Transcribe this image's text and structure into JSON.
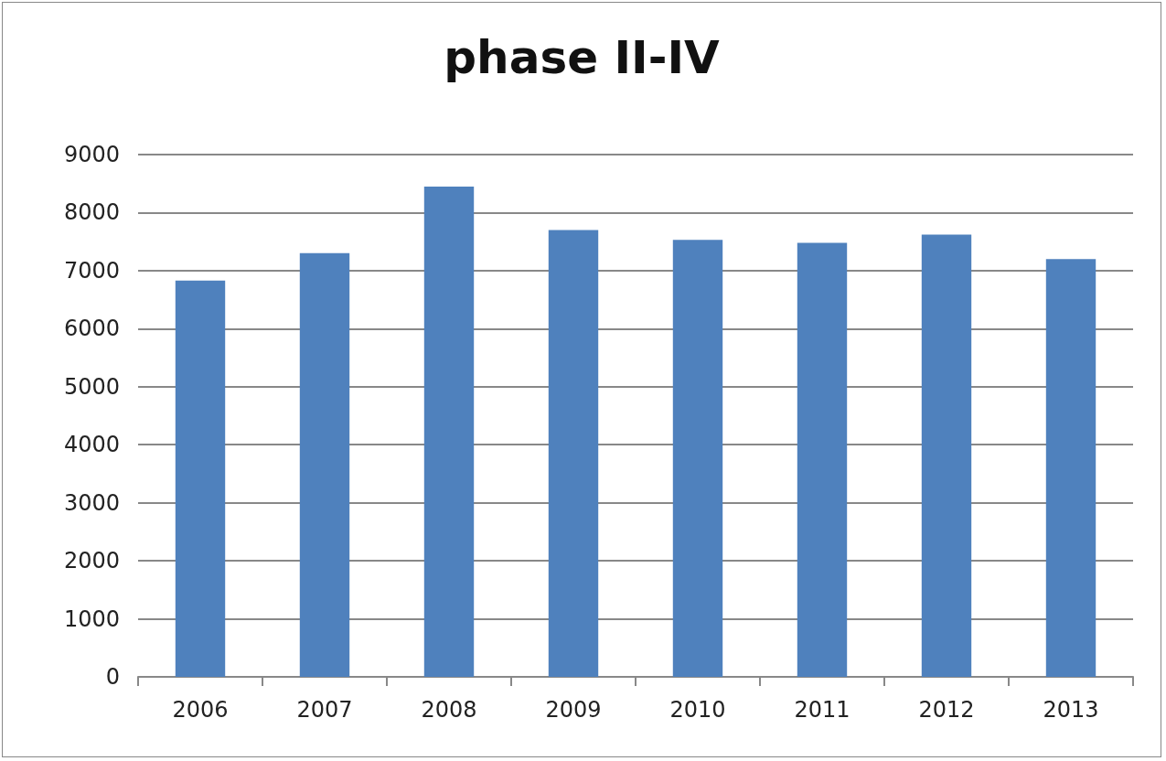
{
  "chart_data": {
    "type": "bar",
    "title": "phase II-IV",
    "categories": [
      "2006",
      "2007",
      "2008",
      "2009",
      "2010",
      "2011",
      "2012",
      "2013"
    ],
    "values": [
      6830,
      7300,
      8450,
      7700,
      7530,
      7480,
      7620,
      7200
    ],
    "color": "#4f81bd",
    "ylim": [
      0,
      9000
    ],
    "yticks": [
      0,
      1000,
      2000,
      3000,
      4000,
      5000,
      6000,
      7000,
      8000,
      9000
    ],
    "grid": "y"
  }
}
